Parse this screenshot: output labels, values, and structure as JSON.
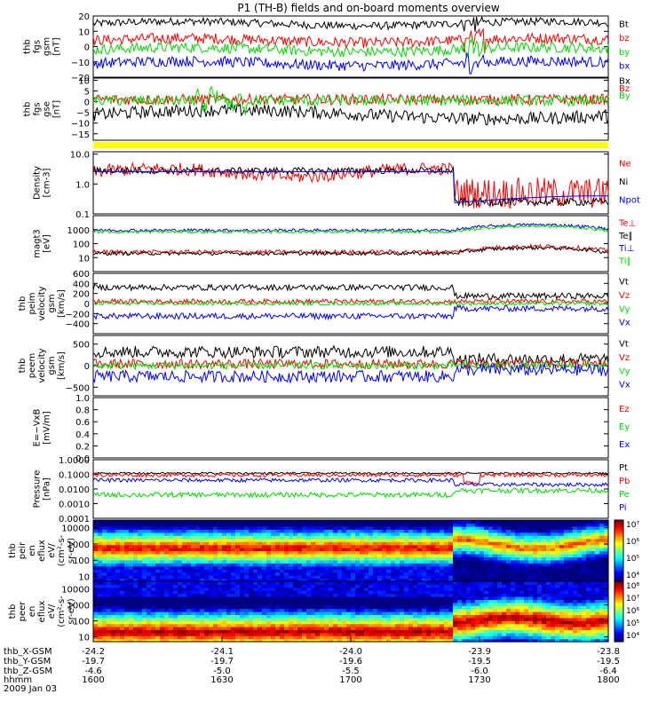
{
  "title": "P1 (TH-B) fields and on-board moments overview",
  "colors": {
    "black": "#000000",
    "red": "#ff0000",
    "green": "#00dd00",
    "blue": "#0000ff",
    "yellow": "#ffff00",
    "lime": "#33cc33"
  },
  "chart_data": [
    {
      "type": "line",
      "panel": "fgs_gsm",
      "ylabel": [
        "thb",
        "fgs",
        "gsm",
        "[nT]"
      ],
      "ylim": [
        -20,
        20
      ],
      "yticks": [
        "20",
        "10",
        "0",
        "−10",
        "−20"
      ],
      "series": [
        {
          "name": "Bt",
          "color": "black",
          "level": 15
        },
        {
          "name": "bz",
          "color": "red",
          "level": 4
        },
        {
          "name": "by",
          "color": "green",
          "level": -2
        },
        {
          "name": "bx",
          "color": "blue",
          "level": -11
        }
      ]
    },
    {
      "type": "line",
      "panel": "fgs_gse",
      "ylabel": [
        "thb",
        "fgs",
        "gse",
        "[nT]"
      ],
      "ylim": [
        -18,
        11
      ],
      "yticks": [
        "10",
        "5",
        "0",
        "−5",
        "−10",
        "−15"
      ],
      "series": [
        {
          "name": "Bx",
          "color": "black",
          "level": -3
        },
        {
          "name": "Bz",
          "color": "red",
          "level": 1
        },
        {
          "name": "By",
          "color": "green",
          "level": 0
        }
      ]
    },
    {
      "type": "bar",
      "panel": "flag_bar",
      "color": "yellow"
    },
    {
      "type": "line",
      "panel": "density",
      "ylabel": [
        "Density",
        "[cm-3]"
      ],
      "scale": "log",
      "ylim": [
        0.1,
        12
      ],
      "yticks": [
        "10.0",
        "1.0",
        "0.1"
      ],
      "series": [
        {
          "name": "Ne",
          "color": "red"
        },
        {
          "name": "Ni",
          "color": "black"
        },
        {
          "name": "Npot",
          "color": "blue"
        }
      ]
    },
    {
      "type": "line",
      "panel": "temperature",
      "ylabel": [
        "magt3",
        "[eV]"
      ],
      "scale": "log",
      "ylim": [
        1,
        10000
      ],
      "yticks": [
        "1000",
        "100",
        "10"
      ],
      "series": [
        {
          "name": "Te⊥",
          "color": "red"
        },
        {
          "name": "Te∥",
          "color": "black"
        },
        {
          "name": "Ti⊥",
          "color": "blue"
        },
        {
          "name": "Ti∥",
          "color": "green"
        }
      ]
    },
    {
      "type": "line",
      "panel": "peim_velocity",
      "ylabel": [
        "thb",
        "peim",
        "velocity",
        "gsm",
        "[km/s]"
      ],
      "ylim": [
        -600,
        600
      ],
      "yticks": [
        "600",
        "400",
        "200",
        "0",
        "−200",
        "−400"
      ],
      "series": [
        {
          "name": "Vt",
          "color": "black"
        },
        {
          "name": "Vz",
          "color": "red"
        },
        {
          "name": "Vy",
          "color": "green"
        },
        {
          "name": "Vx",
          "color": "blue"
        }
      ]
    },
    {
      "type": "line",
      "panel": "peem_velocity",
      "ylabel": [
        "thb",
        "peem",
        "velocity",
        "gsm",
        "[km/s]"
      ],
      "ylim": [
        -700,
        700
      ],
      "yticks": [
        "500",
        "0",
        "−500"
      ],
      "series": [
        {
          "name": "Vt",
          "color": "black"
        },
        {
          "name": "Vz",
          "color": "red"
        },
        {
          "name": "Vy",
          "color": "green"
        },
        {
          "name": "Vx",
          "color": "blue"
        }
      ]
    },
    {
      "type": "line",
      "panel": "efield",
      "ylabel": [
        "E=−VxB",
        "[mV/m]"
      ],
      "ylim": [
        0,
        1
      ],
      "yticks": [
        "1.0",
        "0.8",
        "0.6",
        "0.4",
        "0.2",
        "0.0"
      ],
      "series": [
        {
          "name": "Ez",
          "color": "red"
        },
        {
          "name": "Ey",
          "color": "green"
        },
        {
          "name": "Ex",
          "color": "blue"
        }
      ]
    },
    {
      "type": "line",
      "panel": "pressure",
      "ylabel": [
        "Pressure",
        "[nPa]"
      ],
      "scale": "log",
      "ylim": [
        0.0001,
        1
      ],
      "yticks": [
        "1.0000",
        "0.1000",
        "0.0100",
        "0.0010",
        "0.0001"
      ],
      "series": [
        {
          "name": "Pt",
          "color": "black"
        },
        {
          "name": "Pb",
          "color": "red"
        },
        {
          "name": "Pe",
          "color": "green"
        },
        {
          "name": "Pi",
          "color": "blue"
        }
      ]
    },
    {
      "type": "heatmap",
      "panel": "peir_spectrogram",
      "ylabel": [
        "thb",
        "peir",
        "en",
        "eflux",
        "eV/",
        "(cm²-s-",
        "sr-eV)"
      ],
      "scale": "log",
      "ylim": [
        5,
        30000
      ],
      "yticks": [
        "10000",
        "1000",
        "100",
        "10"
      ],
      "colorbar_ticks": [
        "10⁷",
        "10⁶",
        "10⁵",
        "10⁴"
      ]
    },
    {
      "type": "heatmap",
      "panel": "peer_spectrogram",
      "ylabel": [
        "thb",
        "peer",
        "en",
        "eflux",
        "eV/",
        "(cm²-s-",
        "sr-eV)"
      ],
      "scale": "log",
      "ylim": [
        5,
        30000
      ],
      "yticks": [
        "10000",
        "1000",
        "100",
        "10"
      ],
      "colorbar_ticks": [
        "10⁸",
        "10⁷",
        "10⁶",
        "10⁵",
        "10⁴"
      ]
    }
  ],
  "xaxis": {
    "labels": [
      "thb_X-GSM",
      "thb_Y-GSM",
      "thb_Z-GSM",
      "hhmm",
      "2009 Jan 03"
    ],
    "columns": [
      {
        "x": "-24.2",
        "y": "-19.7",
        "z": "-4.6",
        "hhmm": "1600"
      },
      {
        "x": "-24.1",
        "y": "-19.7",
        "z": "-5.0",
        "hhmm": "1630"
      },
      {
        "x": "-24.0",
        "y": "-19.6",
        "z": "-5.5",
        "hhmm": "1700"
      },
      {
        "x": "-23.9",
        "y": "-19.5",
        "z": "-6.0",
        "hhmm": "1730"
      },
      {
        "x": "-23.8",
        "y": "-19.5",
        "z": "-6.4",
        "hhmm": "1800"
      }
    ]
  }
}
